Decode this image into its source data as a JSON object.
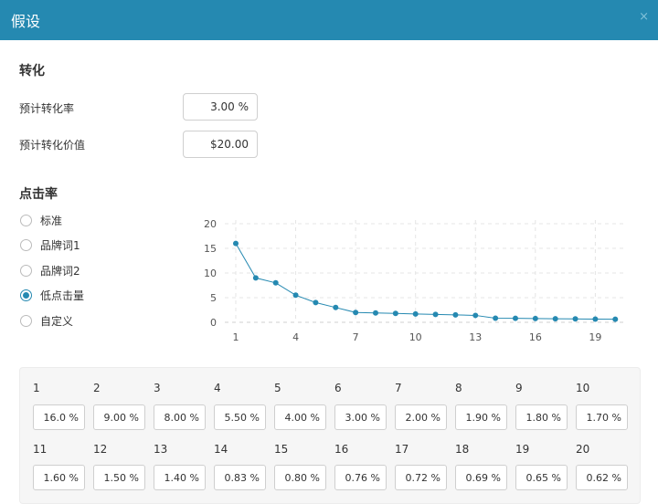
{
  "dialog": {
    "title": "假设",
    "close": "×"
  },
  "conversion": {
    "heading": "转化",
    "rate_label": "预计转化率",
    "rate_value": "3.00  %",
    "value_label": "预计转化价值",
    "value_value": "$20.00"
  },
  "ctr": {
    "heading": "点击率",
    "options": [
      {
        "label": "标准",
        "checked": false
      },
      {
        "label": "品牌词1",
        "checked": false
      },
      {
        "label": "品牌词2",
        "checked": false
      },
      {
        "label": "低点击量",
        "checked": true
      },
      {
        "label": "自定义",
        "checked": false
      }
    ]
  },
  "chart_data": {
    "type": "line",
    "x": [
      1,
      2,
      3,
      4,
      5,
      6,
      7,
      8,
      9,
      10,
      11,
      12,
      13,
      14,
      15,
      16,
      17,
      18,
      19,
      20
    ],
    "values": [
      16.0,
      9.0,
      8.0,
      5.5,
      4.0,
      3.0,
      2.0,
      1.9,
      1.8,
      1.7,
      1.6,
      1.5,
      1.4,
      0.83,
      0.8,
      0.76,
      0.72,
      0.69,
      0.65,
      0.62
    ],
    "xticks": [
      1,
      4,
      7,
      10,
      13,
      16,
      19
    ],
    "yticks": [
      0,
      5,
      10,
      15,
      20
    ],
    "ylim": [
      0,
      20
    ],
    "grid": true,
    "color": "#2589b1"
  },
  "positions": [
    {
      "pos": "1",
      "value": "16.0  %"
    },
    {
      "pos": "2",
      "value": "9.00  %"
    },
    {
      "pos": "3",
      "value": "8.00  %"
    },
    {
      "pos": "4",
      "value": "5.50  %"
    },
    {
      "pos": "5",
      "value": "4.00  %"
    },
    {
      "pos": "6",
      "value": "3.00  %"
    },
    {
      "pos": "7",
      "value": "2.00  %"
    },
    {
      "pos": "8",
      "value": "1.90  %"
    },
    {
      "pos": "9",
      "value": "1.80  %"
    },
    {
      "pos": "10",
      "value": "1.70  %"
    },
    {
      "pos": "11",
      "value": "1.60  %"
    },
    {
      "pos": "12",
      "value": "1.50  %"
    },
    {
      "pos": "13",
      "value": "1.40  %"
    },
    {
      "pos": "14",
      "value": "0.83  %"
    },
    {
      "pos": "15",
      "value": "0.80  %"
    },
    {
      "pos": "16",
      "value": "0.76  %"
    },
    {
      "pos": "17",
      "value": "0.72  %"
    },
    {
      "pos": "18",
      "value": "0.69  %"
    },
    {
      "pos": "19",
      "value": "0.65  %"
    },
    {
      "pos": "20",
      "value": "0.62  %"
    }
  ]
}
